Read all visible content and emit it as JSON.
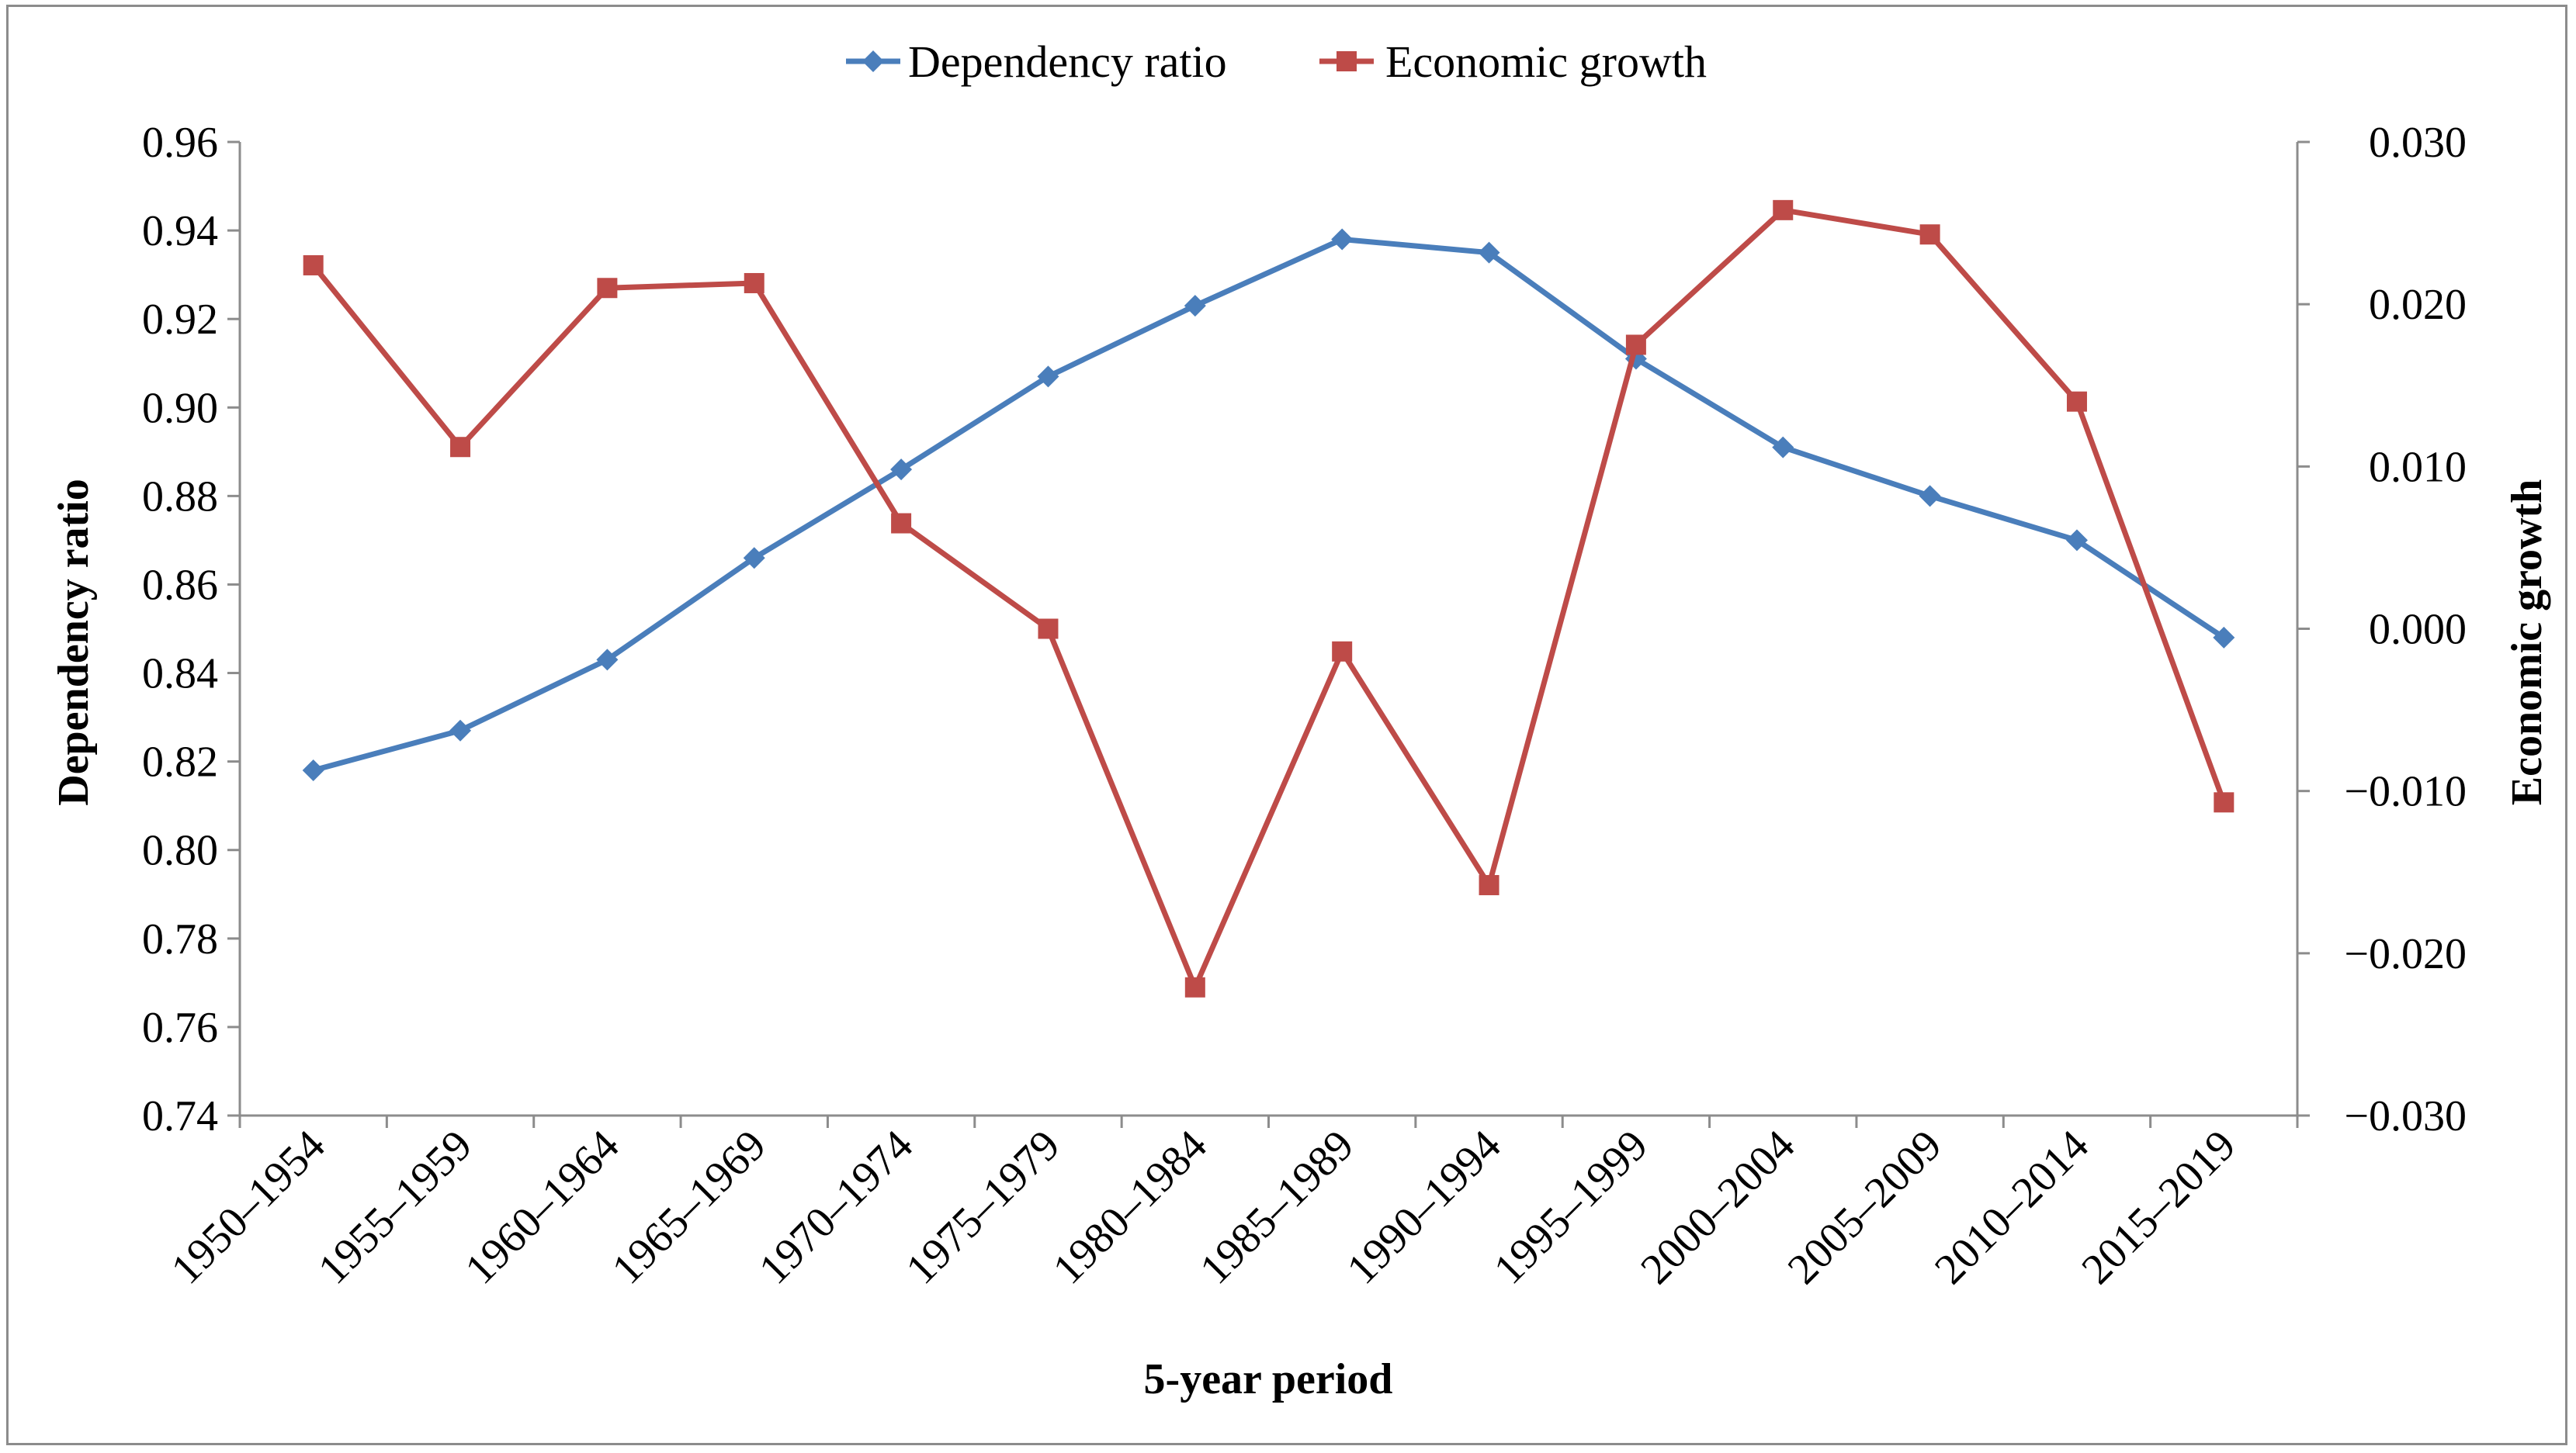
{
  "chart_data": {
    "type": "line",
    "title": "",
    "xlabel": "5-year period",
    "ylabel_left": "Dependency ratio",
    "ylabel_right": "Economic growth",
    "categories": [
      "1950–1954",
      "1955–1959",
      "1960–1964",
      "1965–1969",
      "1970–1974",
      "1975–1979",
      "1980–1984",
      "1985–1989",
      "1990–1994",
      "1995–1999",
      "2000–2004",
      "2005–2009",
      "2010–2014",
      "2015–2019"
    ],
    "ylim_left": [
      0.74,
      0.96
    ],
    "ylim_right": [
      -0.03,
      0.03
    ],
    "yticks_left": [
      "0.74",
      "0.76",
      "0.78",
      "0.80",
      "0.82",
      "0.84",
      "0.86",
      "0.88",
      "0.90",
      "0.92",
      "0.94",
      "0.96"
    ],
    "yticks_right": [
      "-0.030",
      "-0.020",
      "-0.010",
      "0.000",
      "0.010",
      "0.020",
      "0.030"
    ],
    "grid": false,
    "legend_position": "top-center",
    "series": [
      {
        "name": "Dependency ratio",
        "axis": "left",
        "color": "#4a7ebb",
        "marker": "diamond",
        "values": [
          0.818,
          0.827,
          0.843,
          0.866,
          0.886,
          0.907,
          0.923,
          0.938,
          0.935,
          0.911,
          0.891,
          0.88,
          0.87,
          0.848
        ]
      },
      {
        "name": "Economic growth",
        "axis": "right",
        "color": "#be4b48",
        "marker": "square",
        "values": [
          0.0224,
          0.0112,
          0.021,
          0.0213,
          0.0065,
          0.0,
          -0.0221,
          -0.0014,
          -0.0158,
          0.0175,
          0.0258,
          0.0243,
          0.014,
          -0.0107
        ]
      }
    ]
  }
}
